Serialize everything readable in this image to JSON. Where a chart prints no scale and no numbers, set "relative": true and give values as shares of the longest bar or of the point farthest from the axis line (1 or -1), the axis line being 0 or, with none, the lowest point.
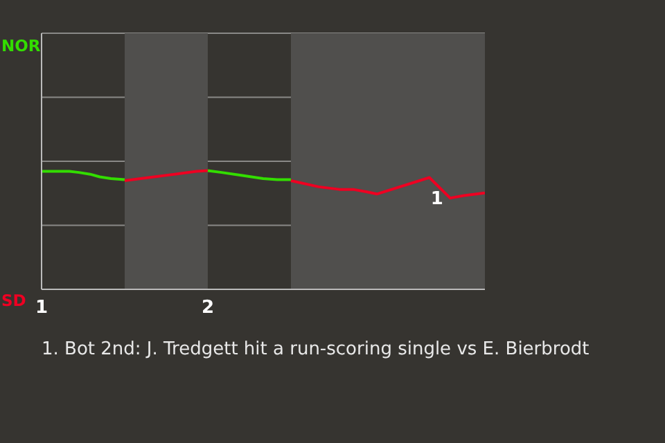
{
  "chart_data": {
    "type": "line",
    "relative": true,
    "annotations": [
      "NOR",
      "SD",
      {
        "text": "1",
        "x": 3.458,
        "y": 0.769
      },
      "1. Bot 2nd: J. Tredgett hit a run-scoring single vs E. Bierbrodt"
    ],
    "series": [
      {
        "color": "#33dd00",
        "x": [
          1,
          1.167,
          1.225,
          1.292,
          1.35,
          1.417,
          1.5
        ],
        "values": [
          0.994,
          0.994,
          0.985,
          0.97,
          0.948,
          0.933,
          0.924
        ]
      },
      {
        "color": "#ee0022",
        "x": [
          1.5,
          1.933,
          2
        ],
        "values": [
          0.916,
          0.994,
          1
        ]
      },
      {
        "color": "#33dd00",
        "x": [
          2,
          2.083,
          2.208,
          2.333,
          2.417,
          2.5
        ],
        "values": [
          1,
          0.985,
          0.959,
          0.933,
          0.924,
          0.924
        ]
      },
      {
        "color": "#ee0022",
        "x": [
          2.5,
          2.667,
          2.792,
          2.875,
          2.958,
          3.017,
          3.333,
          3.458,
          3.542,
          3.667
        ],
        "values": [
          0.916,
          0.864,
          0.842,
          0.842,
          0.821,
          0.803,
          0.942,
          0.769,
          0.79,
          0.812
        ]
      }
    ],
    "xlim": [
      1,
      3.667
    ],
    "xticks": [
      1,
      2
    ],
    "ref_lines": [
      {
        "axis": "y",
        "value": 0.54,
        "color": "#8a8987"
      },
      {
        "axis": "y",
        "value": 1.079,
        "color": "#8a8987"
      },
      {
        "axis": "y",
        "value": 1.619,
        "color": "#8a8987"
      }
    ],
    "bands": [
      {
        "axis": "x",
        "from": 1.5,
        "to": 2,
        "color": "#504f4d"
      },
      {
        "axis": "x",
        "from": 2.5,
        "to": 3.667,
        "color": "#504f4d"
      }
    ]
  }
}
